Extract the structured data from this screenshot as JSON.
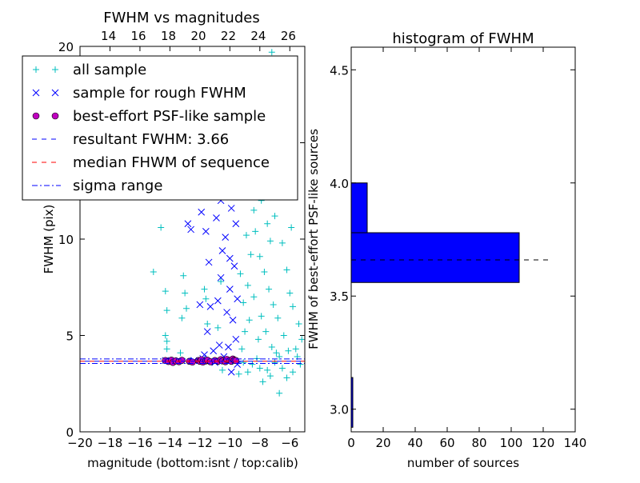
{
  "chart_data": [
    {
      "type": "scatter",
      "title": "FWHM vs magnitudes",
      "xlabel": "magnitude (bottom:isnt / top:calib)",
      "ylabel": "FWHM (pix)",
      "xlim": [
        -20,
        -5
      ],
      "ylim": [
        0,
        20
      ],
      "xticks": [
        -20,
        -18,
        -16,
        -14,
        -12,
        -10,
        -8,
        -6
      ],
      "xtick_labels": [
        "−20",
        "−18",
        "−16",
        "−14",
        "−12",
        "−10",
        "−8",
        "−6"
      ],
      "yticks": [
        0,
        5,
        10,
        15,
        20
      ],
      "ytick_labels": [
        "0",
        "5",
        "10",
        "15",
        "20"
      ],
      "top_axis": {
        "ticks_bottom_coord": [
          -18.1,
          -16.1,
          -14.1,
          -12.1,
          -10.1,
          -8.1,
          -6.1
        ],
        "labels": [
          "14",
          "16",
          "18",
          "20",
          "22",
          "24",
          "26"
        ]
      },
      "grid": false,
      "legend_position": "upper-left",
      "legend": [
        {
          "label": "all sample",
          "marker": "+",
          "color": "#00bfbf"
        },
        {
          "label": "sample for rough FWHM",
          "marker": "x",
          "color": "#0000ff"
        },
        {
          "label": "best-effort PSF-like sample",
          "marker": "o",
          "color": "#bf00bf"
        },
        {
          "label": "resultant FWHM: 3.66",
          "line": "dashed",
          "color": "#0000ff"
        },
        {
          "label": "median FHWM of sequence",
          "line": "dashed",
          "color": "#ff0000"
        },
        {
          "label": "sigma range",
          "line": "dashdot",
          "color": "#0000ff"
        }
      ],
      "reference_lines": {
        "resultant_fwhm": 3.66,
        "median_fwhm": 3.66,
        "sigma_low": 3.55,
        "sigma_high": 3.78
      },
      "series": [
        {
          "name": "all sample",
          "marker": "+",
          "color": "#00bfbf",
          "points": [
            [
              -14.6,
              10.6
            ],
            [
              -15.1,
              8.3
            ],
            [
              -14.3,
              7.3
            ],
            [
              -14.2,
              6.3
            ],
            [
              -14.3,
              5.0
            ],
            [
              -14.2,
              4.7
            ],
            [
              -14.2,
              4.3
            ],
            [
              -13.1,
              8.1
            ],
            [
              -13.0,
              7.2
            ],
            [
              -12.9,
              6.4
            ],
            [
              -13.2,
              5.9
            ],
            [
              -13.3,
              4.1
            ],
            [
              -12.6,
              3.7
            ],
            [
              -11.7,
              7.4
            ],
            [
              -11.6,
              6.9
            ],
            [
              -11.5,
              5.6
            ],
            [
              -10.6,
              7.8
            ],
            [
              -10.8,
              5.4
            ],
            [
              -10.5,
              3.2
            ],
            [
              -9.2,
              4.3
            ],
            [
              -9.0,
              5.2
            ],
            [
              -8.8,
              7.6
            ],
            [
              -8.6,
              9.2
            ],
            [
              -8.4,
              11.5
            ],
            [
              -8.9,
              13.0
            ],
            [
              -8.7,
              14.6
            ],
            [
              -8.5,
              16.3
            ],
            [
              -8.2,
              17.7
            ],
            [
              -7.8,
              18.7
            ],
            [
              -7.5,
              19.3
            ],
            [
              -7.2,
              19.7
            ],
            [
              -6.8,
              18.9
            ],
            [
              -6.3,
              19.2
            ],
            [
              -9.4,
              3.0
            ],
            [
              -9.1,
              3.6
            ],
            [
              -8.8,
              3.1
            ],
            [
              -8.5,
              3.5
            ],
            [
              -8.2,
              3.8
            ],
            [
              -8.0,
              3.3
            ],
            [
              -7.8,
              2.6
            ],
            [
              -7.5,
              3.2
            ],
            [
              -7.3,
              2.9
            ],
            [
              -7.0,
              3.6
            ],
            [
              -6.7,
              2.0
            ],
            [
              -6.5,
              3.3
            ],
            [
              -6.2,
              2.8
            ],
            [
              -5.8,
              3.1
            ],
            [
              -5.5,
              3.9
            ],
            [
              -5.2,
              4.8
            ],
            [
              -5.4,
              5.6
            ],
            [
              -5.8,
              6.5
            ],
            [
              -6.0,
              7.2
            ],
            [
              -6.4,
              5.0
            ],
            [
              -6.8,
              5.9
            ],
            [
              -7.1,
              6.6
            ],
            [
              -7.4,
              7.4
            ],
            [
              -7.7,
              8.3
            ],
            [
              -8.0,
              9.1
            ],
            [
              -8.3,
              10.4
            ],
            [
              -7.9,
              12.0
            ],
            [
              -7.6,
              13.4
            ],
            [
              -7.3,
              14.8
            ],
            [
              -7.0,
              16.1
            ],
            [
              -6.6,
              17.2
            ],
            [
              -8.1,
              4.8
            ],
            [
              -7.6,
              5.2
            ],
            [
              -7.2,
              4.4
            ],
            [
              -6.9,
              4.1
            ],
            [
              -6.1,
              4.2
            ],
            [
              -5.6,
              4.3
            ],
            [
              -5.3,
              3.5
            ],
            [
              -6.7,
              3.9
            ],
            [
              -7.9,
              6.0
            ],
            [
              -8.4,
              7.0
            ],
            [
              -8.7,
              5.8
            ],
            [
              -9.1,
              6.7
            ],
            [
              -9.3,
              8.2
            ],
            [
              -8.6,
              12.2
            ],
            [
              -8.1,
              15.1
            ],
            [
              -7.7,
              16.9
            ],
            [
              -7.0,
              11.2
            ],
            [
              -6.5,
              9.8
            ],
            [
              -6.2,
              8.4
            ],
            [
              -5.9,
              10.6
            ],
            [
              -7.3,
              9.9
            ],
            [
              -7.5,
              10.8
            ],
            [
              -8.2,
              13.9
            ],
            [
              -7.8,
              17.8
            ],
            [
              -8.9,
              10.2
            ]
          ]
        },
        {
          "name": "sample for rough FWHM",
          "marker": "x",
          "color": "#0000ff",
          "points": [
            [
              -14.3,
              3.7
            ],
            [
              -13.4,
              3.7
            ],
            [
              -12.0,
              6.6
            ],
            [
              -11.7,
              4.0
            ],
            [
              -11.5,
              5.2
            ],
            [
              -11.4,
              8.8
            ],
            [
              -11.3,
              6.5
            ],
            [
              -11.1,
              4.2
            ],
            [
              -11.0,
              3.6
            ],
            [
              -10.8,
              6.8
            ],
            [
              -10.7,
              4.5
            ],
            [
              -10.6,
              8.0
            ],
            [
              -10.5,
              9.4
            ],
            [
              -10.3,
              10.1
            ],
            [
              -10.2,
              6.2
            ],
            [
              -10.0,
              7.4
            ],
            [
              -9.9,
              11.6
            ],
            [
              -9.8,
              5.8
            ],
            [
              -9.7,
              8.6
            ],
            [
              -9.6,
              4.8
            ],
            [
              -9.6,
              10.8
            ],
            [
              -9.5,
              6.9
            ],
            [
              -10.4,
              3.9
            ],
            [
              -10.1,
              4.4
            ],
            [
              -9.9,
              3.1
            ],
            [
              -11.9,
              11.4
            ],
            [
              -11.2,
              12.3
            ],
            [
              -10.9,
              11.1
            ],
            [
              -12.8,
              10.8
            ],
            [
              -12.6,
              10.5
            ],
            [
              -12.3,
              12.4
            ],
            [
              -10.6,
              12.0
            ],
            [
              -9.7,
              12.9
            ],
            [
              -11.6,
              10.4
            ],
            [
              -10.0,
              9.0
            ],
            [
              -9.5,
              3.5
            ],
            [
              -11.8,
              3.8
            ],
            [
              -12.4,
              3.7
            ]
          ]
        },
        {
          "name": "best-effort PSF-like sample",
          "marker": "o",
          "color": "#bf00bf",
          "points": [
            [
              -14.3,
              3.7
            ],
            [
              -14.1,
              3.65
            ],
            [
              -13.9,
              3.72
            ],
            [
              -13.8,
              3.6
            ],
            [
              -13.6,
              3.68
            ],
            [
              -13.4,
              3.64
            ],
            [
              -13.2,
              3.71
            ],
            [
              -12.7,
              3.66
            ],
            [
              -12.5,
              3.62
            ],
            [
              -12.1,
              3.7
            ],
            [
              -12.0,
              3.66
            ],
            [
              -11.9,
              3.74
            ],
            [
              -11.8,
              3.62
            ],
            [
              -11.6,
              3.68
            ],
            [
              -11.5,
              3.72
            ],
            [
              -11.3,
              3.64
            ],
            [
              -11.0,
              3.7
            ],
            [
              -10.8,
              3.66
            ],
            [
              -10.6,
              3.75
            ],
            [
              -10.5,
              3.68
            ],
            [
              -10.3,
              3.64
            ],
            [
              -10.2,
              3.76
            ],
            [
              -10.0,
              3.7
            ],
            [
              -9.9,
              3.66
            ],
            [
              -9.8,
              3.78
            ],
            [
              -9.7,
              3.72
            ],
            [
              -9.6,
              3.7
            ]
          ]
        }
      ]
    },
    {
      "type": "bar",
      "orientation": "horizontal",
      "title": "histogram of FWHM",
      "xlabel": "number of sources",
      "ylabel": "FWHM of best-effort PSF-like sources",
      "xlim": [
        0,
        140
      ],
      "ylim": [
        2.9,
        4.6
      ],
      "xticks": [
        0,
        20,
        40,
        60,
        80,
        100,
        120,
        140
      ],
      "yticks": [
        3.0,
        3.5,
        4.0,
        4.5
      ],
      "ytick_labels": [
        "3.0",
        "3.5",
        "4.0",
        "4.5"
      ],
      "grid": false,
      "bins": [
        {
          "y_start": 2.92,
          "y_end": 3.14,
          "count": 1
        },
        {
          "y_start": 3.56,
          "y_end": 3.78,
          "count": 105
        },
        {
          "y_start": 3.78,
          "y_end": 4.0,
          "count": 10
        }
      ],
      "reference_line": {
        "y": 3.66,
        "x_end": 125,
        "style": "dashed",
        "color": "#000000"
      }
    }
  ]
}
